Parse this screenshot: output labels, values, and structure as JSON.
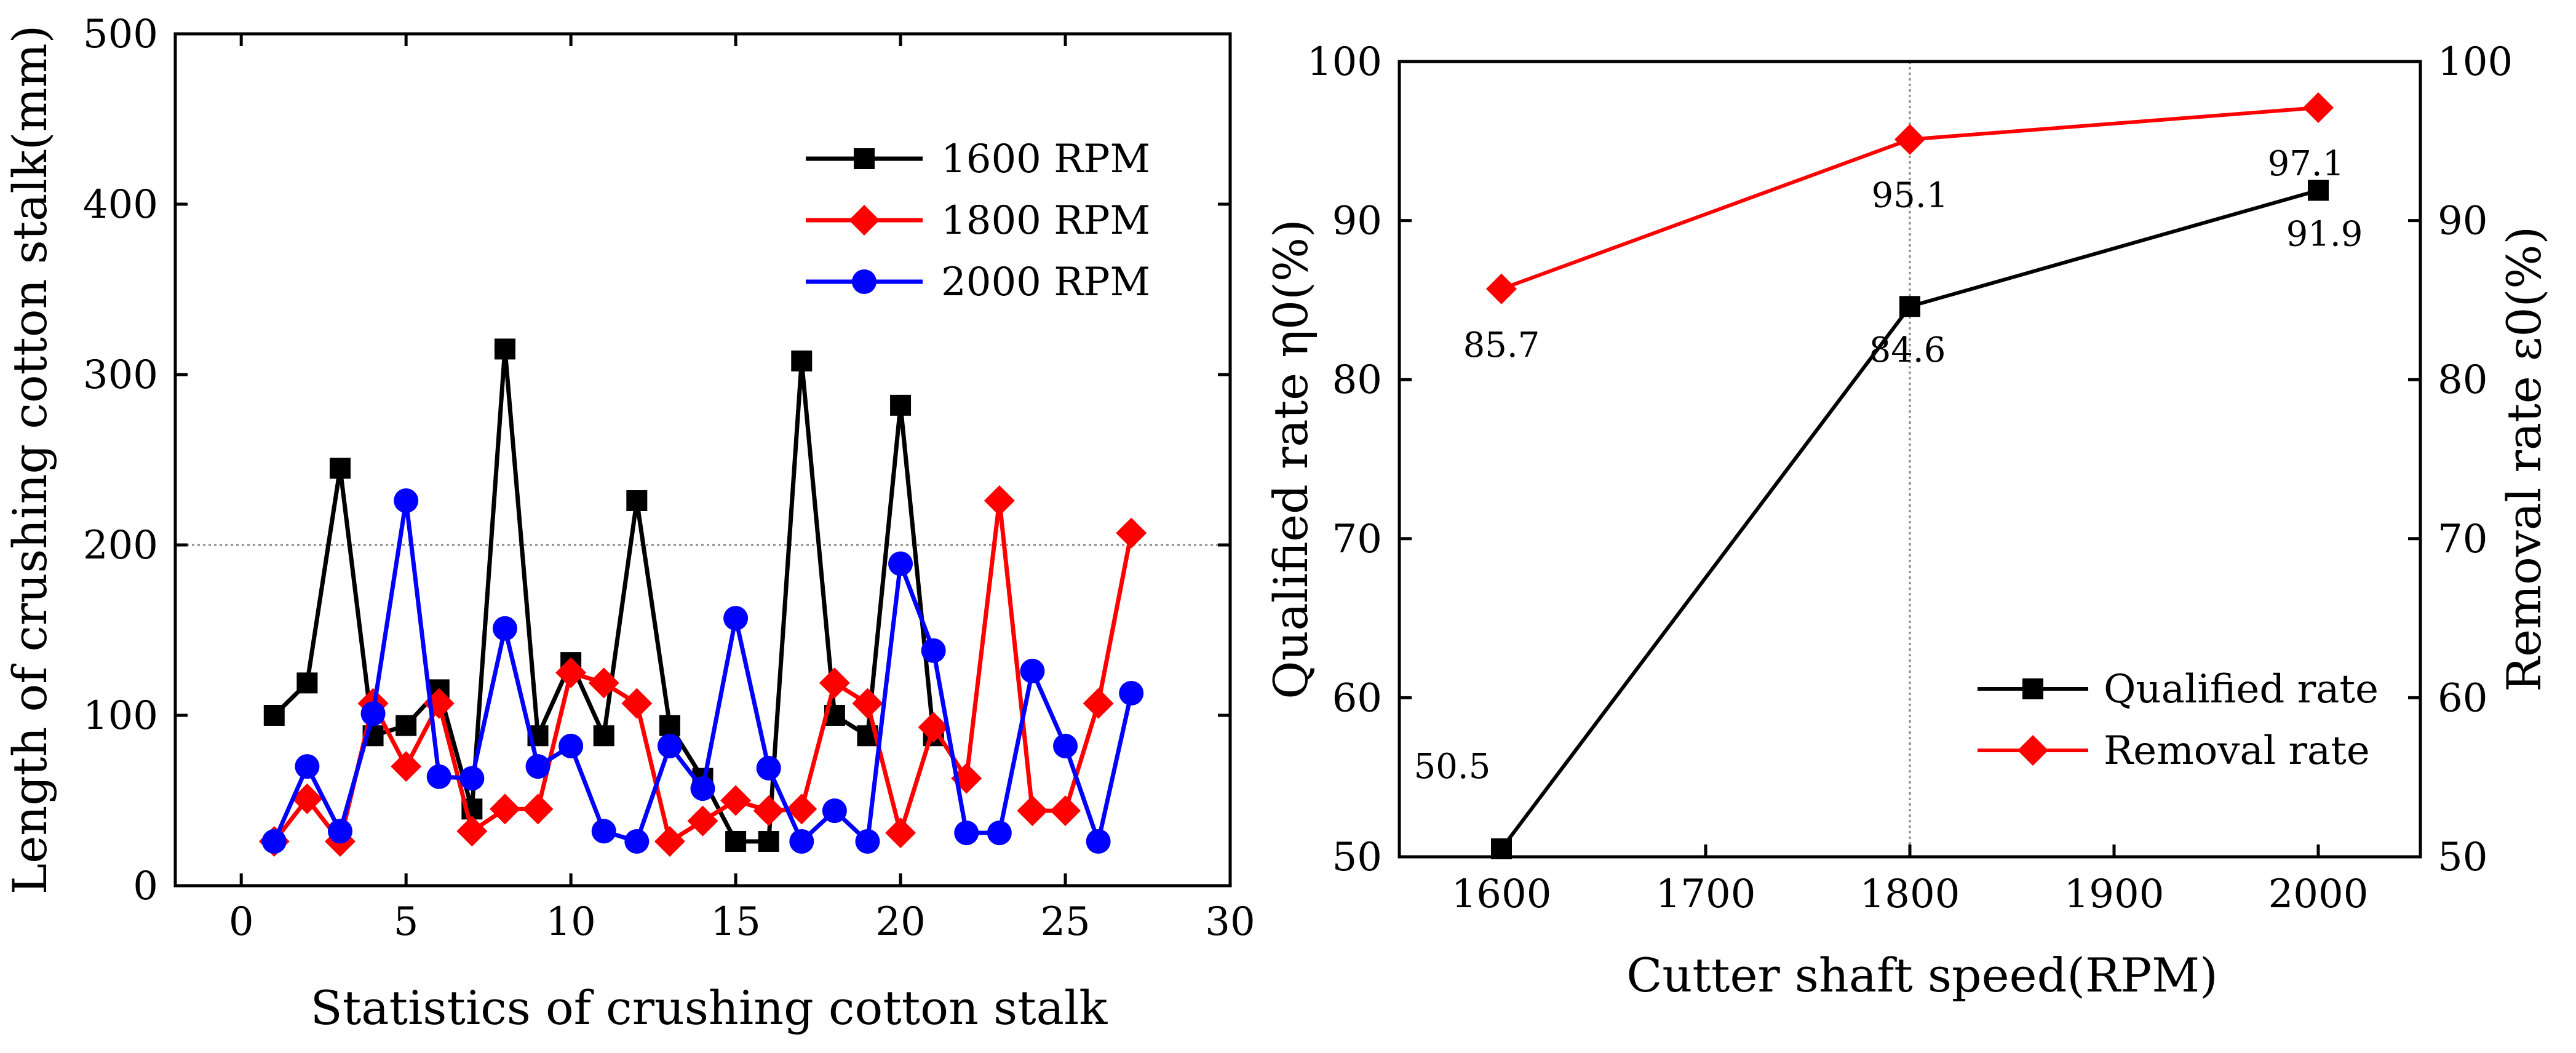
{
  "chart_data": [
    {
      "type": "line",
      "title": "",
      "xlabel": "Statistics of crushing cotton stalk",
      "ylabel": "Length of crushing cotton stalk(mm)",
      "xlim": [
        -2,
        30
      ],
      "ylim": [
        0,
        500
      ],
      "xticks": [
        0,
        5,
        10,
        15,
        20,
        25,
        30
      ],
      "yticks": [
        0,
        100,
        200,
        300,
        400,
        500
      ],
      "reference_line": 200,
      "legend_position": "top-right",
      "series": [
        {
          "name": "1600 RPM",
          "color": "#000000",
          "marker": "square",
          "x": [
            1,
            2,
            3,
            4,
            5,
            6,
            7,
            8,
            9,
            10,
            11,
            12,
            13,
            14,
            15,
            16,
            17,
            18,
            19,
            20,
            21
          ],
          "values": [
            100,
            119,
            245,
            88,
            94,
            115,
            45,
            315,
            88,
            131,
            88,
            226,
            94,
            63,
            26,
            26,
            308,
            100,
            88,
            282,
            88
          ]
        },
        {
          "name": "1800 RPM",
          "color": "#ff0000",
          "marker": "diamond",
          "x": [
            1,
            2,
            3,
            4,
            5,
            6,
            7,
            8,
            9,
            10,
            11,
            12,
            13,
            14,
            15,
            16,
            17,
            18,
            19,
            20,
            21,
            22,
            23,
            24,
            25,
            26,
            27
          ],
          "values": [
            26,
            51,
            26,
            107,
            70,
            107,
            32,
            45,
            45,
            125,
            119,
            107,
            26,
            38,
            50,
            44,
            45,
            119,
            107,
            31,
            93,
            63,
            226,
            44,
            44,
            107,
            207
          ]
        },
        {
          "name": "2000 RPM",
          "color": "#0000ff",
          "marker": "circle",
          "x": [
            1,
            2,
            3,
            4,
            5,
            6,
            7,
            8,
            9,
            10,
            11,
            12,
            13,
            14,
            15,
            16,
            17,
            18,
            19,
            20,
            21,
            22,
            23,
            24,
            25,
            26,
            27
          ],
          "values": [
            26,
            70,
            32,
            101,
            226,
            64,
            63,
            151,
            70,
            82,
            32,
            26,
            82,
            57,
            157,
            69,
            26,
            44,
            26,
            189,
            138,
            31,
            31,
            126,
            82,
            26,
            113
          ]
        }
      ]
    },
    {
      "type": "line",
      "title": "",
      "xlabel": "Cutter shaft speed(RPM)",
      "ylabel_left": "Qualified rate η0(%)",
      "ylabel_right": "Removal rate ε0(%)",
      "categories": [
        1600,
        1800,
        2000
      ],
      "xlim": [
        1550,
        2050
      ],
      "ylim": [
        50,
        100
      ],
      "xticks": [
        1600,
        1700,
        1800,
        1900,
        2000
      ],
      "yticks": [
        50,
        60,
        70,
        80,
        90,
        100
      ],
      "reference_line_x": 1800,
      "legend_position": "bottom-right",
      "series": [
        {
          "name": "Qualified rate",
          "color": "#000000",
          "marker": "square",
          "x": [
            1600,
            1800,
            2000
          ],
          "values": [
            50.5,
            84.6,
            91.9
          ],
          "labels": [
            "50.5",
            "84.6",
            "91.9"
          ]
        },
        {
          "name": "Removal rate",
          "color": "#ff0000",
          "marker": "diamond",
          "x": [
            1600,
            1800,
            2000
          ],
          "values": [
            85.7,
            95.1,
            97.1
          ],
          "labels": [
            "85.7",
            "95.1",
            "97.1"
          ]
        }
      ]
    }
  ]
}
